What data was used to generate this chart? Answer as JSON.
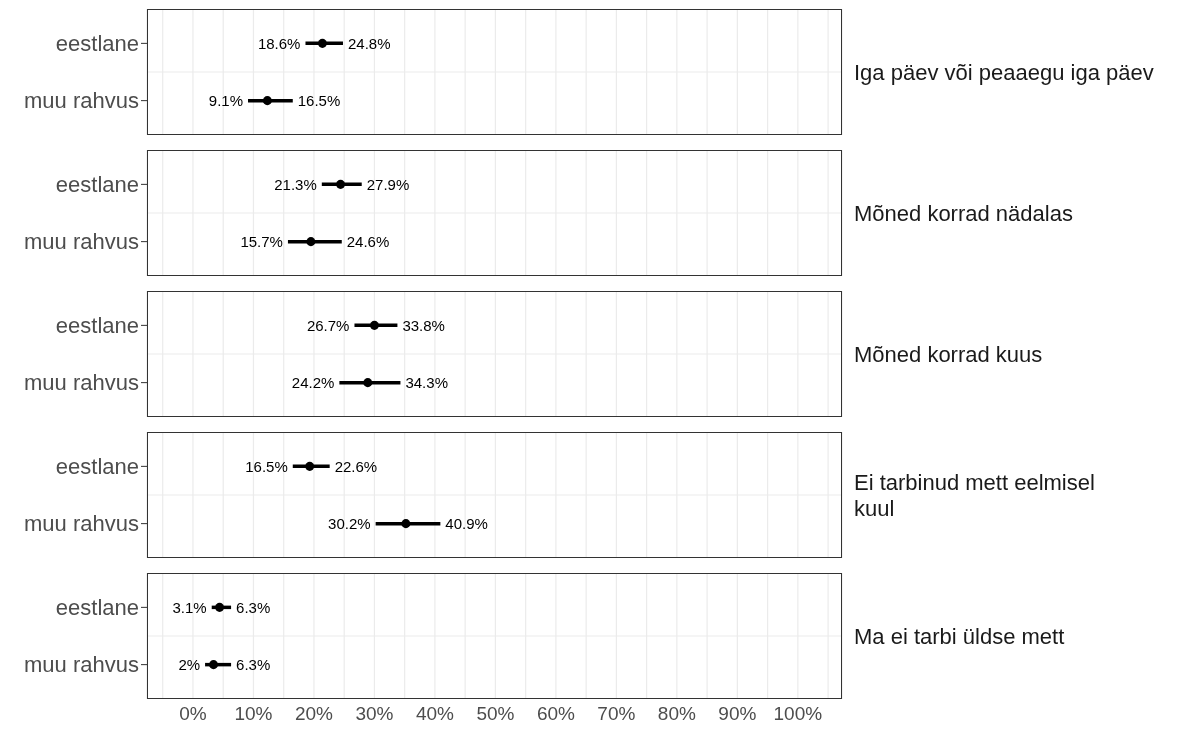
{
  "chart_data": [
    {
      "type": "scatter",
      "orientation": "horizontal",
      "y2label": "Iga päev või peaaegu iga päev",
      "categories": [
        "eestlane",
        "muu rahvus"
      ],
      "values": [
        21.4,
        12.3
      ],
      "errors": [
        [
          18.6,
          24.8
        ],
        [
          9.1,
          16.5
        ]
      ],
      "color": "#000000",
      "marker": "circle",
      "xlim": [
        -7.6,
        107.3
      ],
      "xticks": [
        {
          "value": -5,
          "label": null
        },
        0,
        {
          "value": 5,
          "label": null
        },
        10,
        {
          "value": 15,
          "label": null
        },
        20,
        {
          "value": 25,
          "label": null
        },
        30,
        {
          "value": 35,
          "label": null
        },
        40,
        {
          "value": 45,
          "label": null
        },
        50,
        {
          "value": 55,
          "label": null
        },
        60,
        {
          "value": 65,
          "label": null
        },
        70,
        {
          "value": 75,
          "label": null
        },
        80,
        {
          "value": 85,
          "label": null
        },
        90,
        {
          "value": 95,
          "label": null
        },
        100,
        {
          "value": 105,
          "label": null
        }
      ],
      "grid": true,
      "legend": false,
      "tick_labels": "y",
      "annotations": [
        {
          "text": "18.6%",
          "x": 18.6,
          "y": "eestlane"
        },
        {
          "text": "24.8%",
          "x": 24.8,
          "y": "eestlane"
        },
        {
          "text": "9.1%",
          "x": 9.1,
          "y": "muu rahvus"
        },
        {
          "text": "16.5%",
          "x": 16.5,
          "y": "muu rahvus"
        }
      ]
    },
    {
      "type": "scatter",
      "orientation": "horizontal",
      "y2label": "Mõned korrad nädalas",
      "categories": [
        "eestlane",
        "muu rahvus"
      ],
      "values": [
        24.4,
        19.5
      ],
      "errors": [
        [
          21.3,
          27.9
        ],
        [
          15.7,
          24.6
        ]
      ],
      "color": "#000000",
      "marker": "circle",
      "xlim": [
        -7.6,
        107.3
      ],
      "xticks": [
        {
          "value": -5,
          "label": null
        },
        0,
        {
          "value": 5,
          "label": null
        },
        10,
        {
          "value": 15,
          "label": null
        },
        20,
        {
          "value": 25,
          "label": null
        },
        30,
        {
          "value": 35,
          "label": null
        },
        40,
        {
          "value": 45,
          "label": null
        },
        50,
        {
          "value": 55,
          "label": null
        },
        60,
        {
          "value": 65,
          "label": null
        },
        70,
        {
          "value": 75,
          "label": null
        },
        80,
        {
          "value": 85,
          "label": null
        },
        90,
        {
          "value": 95,
          "label": null
        },
        100,
        {
          "value": 105,
          "label": null
        }
      ],
      "grid": true,
      "legend": false,
      "tick_labels": "y",
      "annotations": [
        {
          "text": "21.3%",
          "x": 21.3,
          "y": "eestlane"
        },
        {
          "text": "27.9%",
          "x": 27.9,
          "y": "eestlane"
        },
        {
          "text": "15.7%",
          "x": 15.7,
          "y": "muu rahvus"
        },
        {
          "text": "24.6%",
          "x": 24.6,
          "y": "muu rahvus"
        }
      ]
    },
    {
      "type": "scatter",
      "orientation": "horizontal",
      "y2label": "Mõned korrad kuus",
      "categories": [
        "eestlane",
        "muu rahvus"
      ],
      "values": [
        30.0,
        28.9
      ],
      "errors": [
        [
          26.7,
          33.8
        ],
        [
          24.2,
          34.3
        ]
      ],
      "color": "#000000",
      "marker": "circle",
      "xlim": [
        -7.6,
        107.3
      ],
      "xticks": [
        {
          "value": -5,
          "label": null
        },
        0,
        {
          "value": 5,
          "label": null
        },
        10,
        {
          "value": 15,
          "label": null
        },
        20,
        {
          "value": 25,
          "label": null
        },
        30,
        {
          "value": 35,
          "label": null
        },
        40,
        {
          "value": 45,
          "label": null
        },
        50,
        {
          "value": 55,
          "label": null
        },
        60,
        {
          "value": 65,
          "label": null
        },
        70,
        {
          "value": 75,
          "label": null
        },
        80,
        {
          "value": 85,
          "label": null
        },
        90,
        {
          "value": 95,
          "label": null
        },
        100,
        {
          "value": 105,
          "label": null
        }
      ],
      "grid": true,
      "legend": false,
      "tick_labels": "y",
      "annotations": [
        {
          "text": "26.7%",
          "x": 26.7,
          "y": "eestlane"
        },
        {
          "text": "33.8%",
          "x": 33.8,
          "y": "eestlane"
        },
        {
          "text": "24.2%",
          "x": 24.2,
          "y": "muu rahvus"
        },
        {
          "text": "34.3%",
          "x": 34.3,
          "y": "muu rahvus"
        }
      ]
    },
    {
      "type": "scatter",
      "orientation": "horizontal",
      "y2label": "Ei tarbinud mett eelmisel\nkuul",
      "categories": [
        "eestlane",
        "muu rahvus"
      ],
      "values": [
        19.3,
        35.2
      ],
      "errors": [
        [
          16.5,
          22.6
        ],
        [
          30.2,
          40.9
        ]
      ],
      "color": "#000000",
      "marker": "circle",
      "xlim": [
        -7.6,
        107.3
      ],
      "xticks": [
        {
          "value": -5,
          "label": null
        },
        0,
        {
          "value": 5,
          "label": null
        },
        10,
        {
          "value": 15,
          "label": null
        },
        20,
        {
          "value": 25,
          "label": null
        },
        30,
        {
          "value": 35,
          "label": null
        },
        40,
        {
          "value": 45,
          "label": null
        },
        50,
        {
          "value": 55,
          "label": null
        },
        60,
        {
          "value": 65,
          "label": null
        },
        70,
        {
          "value": 75,
          "label": null
        },
        80,
        {
          "value": 85,
          "label": null
        },
        90,
        {
          "value": 95,
          "label": null
        },
        100,
        {
          "value": 105,
          "label": null
        }
      ],
      "grid": true,
      "legend": false,
      "tick_labels": "y",
      "annotations": [
        {
          "text": "16.5%",
          "x": 16.5,
          "y": "eestlane"
        },
        {
          "text": "22.6%",
          "x": 22.6,
          "y": "eestlane"
        },
        {
          "text": "30.2%",
          "x": 30.2,
          "y": "muu rahvus"
        },
        {
          "text": "40.9%",
          "x": 40.9,
          "y": "muu rahvus"
        }
      ]
    },
    {
      "type": "scatter",
      "orientation": "horizontal",
      "y2label": "Ma ei tarbi üldse mett",
      "categories": [
        "eestlane",
        "muu rahvus"
      ],
      "values": [
        4.4,
        3.4
      ],
      "errors": [
        [
          3.1,
          6.3
        ],
        [
          2,
          6.3
        ]
      ],
      "color": "#000000",
      "marker": "circle",
      "xlim": [
        -7.6,
        107.3
      ],
      "xticks": [
        {
          "value": -5,
          "label": null
        },
        {
          "value": 0,
          "label": "0%"
        },
        {
          "value": 5,
          "label": null
        },
        {
          "value": 10,
          "label": "10%"
        },
        {
          "value": 15,
          "label": null
        },
        {
          "value": 20,
          "label": "20%"
        },
        {
          "value": 25,
          "label": null
        },
        {
          "value": 30,
          "label": "30%"
        },
        {
          "value": 35,
          "label": null
        },
        {
          "value": 40,
          "label": "40%"
        },
        {
          "value": 45,
          "label": null
        },
        {
          "value": 50,
          "label": "50%"
        },
        {
          "value": 55,
          "label": null
        },
        {
          "value": 60,
          "label": "60%"
        },
        {
          "value": 65,
          "label": null
        },
        {
          "value": 70,
          "label": "70%"
        },
        {
          "value": 75,
          "label": null
        },
        {
          "value": 80,
          "label": "80%"
        },
        {
          "value": 85,
          "label": null
        },
        {
          "value": 90,
          "label": "90%"
        },
        {
          "value": 95,
          "label": null
        },
        {
          "value": 100,
          "label": "100%"
        },
        {
          "value": 105,
          "label": null
        }
      ],
      "grid": true,
      "legend": false,
      "annotations": [
        {
          "text": "3.1%",
          "x": 3.1,
          "y": "eestlane"
        },
        {
          "text": "6.3%",
          "x": 6.3,
          "y": "eestlane"
        },
        {
          "text": "2%",
          "x": 2,
          "y": "muu rahvus"
        },
        {
          "text": "6.3%",
          "x": 6.3,
          "y": "muu rahvus"
        }
      ]
    }
  ]
}
